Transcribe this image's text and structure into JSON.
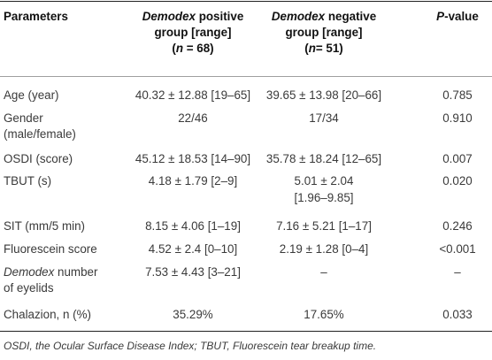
{
  "headers": {
    "parameters": "Parameters",
    "pos_italic": "Demodex",
    "pos_rest": " positive",
    "pos_line2": "group [range]",
    "pos_n_italic": "n",
    "pos_n_rest": " = 68)",
    "neg_italic": "Demodex",
    "neg_rest": " negative",
    "neg_line2": "group [range]",
    "neg_n_italic": "n",
    "neg_n_rest": "= 51)",
    "paren_open": "(",
    "p_italic": "P",
    "p_rest": "-value"
  },
  "rows": [
    {
      "param": "Age (year)",
      "pos": "40.32 ± 12.88 [19–65]",
      "neg": "39.65 ± 13.98 [20–66]",
      "p": "0.785"
    },
    {
      "param": "Gender",
      "param2": "(male/female)",
      "pos": "22/46",
      "neg": "17/34",
      "p": "0.910"
    },
    {
      "param": "OSDI (score)",
      "pos": "45.12 ± 18.53 [14–90]",
      "neg": "35.78 ± 18.24 [12–65]",
      "p": "0.007"
    },
    {
      "param": "TBUT (s)",
      "pos": "4.18 ± 1.79 [2–9]",
      "neg": "5.01 ± 2.04",
      "neg2": "[1.96–9.85]",
      "p": "0.020"
    },
    {
      "param": "SIT (mm/5 min)",
      "pos": "8.15 ± 4.06 [1–19]",
      "neg": "7.16 ± 5.21 [1–17]",
      "p": "0.246"
    },
    {
      "param": "Fluorescein score",
      "pos": "4.52 ± 2.4 [0–10]",
      "neg": "2.19 ± 1.28 [0–4]",
      "p": "<0.001"
    },
    {
      "param_italic": "Demodex",
      "param_rest": " number",
      "param2": "of eyelids",
      "pos": "7.53 ± 4.43 [3–21]",
      "neg": "–",
      "p": "–"
    },
    {
      "param": "Chalazion, n (%)",
      "pos": "35.29%",
      "neg": "17.65%",
      "p": "0.033"
    }
  ],
  "footnote": "OSDI, the Ocular Surface Disease Index; TBUT, Fluorescein tear breakup time."
}
